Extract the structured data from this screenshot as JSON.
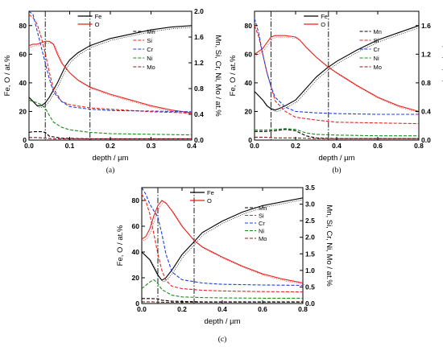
{
  "chart_data": [
    {
      "type": "line",
      "panel_label": "(a)",
      "xlabel": "depth / µm",
      "ylabel_left": "Fe, O / at.%",
      "ylabel_right": "Mn, Si, Cr, Ni, Mo / at.%",
      "xlim": [
        0,
        0.4
      ],
      "ylim_left": [
        0,
        90
      ],
      "ylim_right": [
        0,
        2.0
      ],
      "xticks": [
        "0.0",
        "0.1",
        "0.2",
        "0.3",
        "0.4"
      ],
      "xtick_values": [
        0,
        0.1,
        0.2,
        0.3,
        0.4
      ],
      "yticks_left": [
        "0",
        "20",
        "40",
        "60",
        "80"
      ],
      "ytick_values_left": [
        0,
        20,
        40,
        60,
        80
      ],
      "yticks_right": [
        "0.0",
        "0.4",
        "0.8",
        "1.2",
        "1.6",
        "2.0"
      ],
      "ytick_values_right": [
        0,
        0.4,
        0.8,
        1.2,
        1.6,
        2.0
      ],
      "vlines": [
        0.04,
        0.15
      ],
      "legend_left": [
        "Fe",
        "O"
      ],
      "legend_right": [
        "Mn",
        "Si",
        "Cr",
        "Ni",
        "Mo"
      ],
      "series": [
        {
          "name": "Fe",
          "axis": "left",
          "style": "solid",
          "color": "#000000",
          "x": [
            0,
            0.01,
            0.02,
            0.03,
            0.04,
            0.05,
            0.06,
            0.07,
            0.08,
            0.09,
            0.1,
            0.12,
            0.15,
            0.2,
            0.25,
            0.3,
            0.35,
            0.4
          ],
          "y": [
            30,
            27,
            24,
            24,
            26,
            30,
            35,
            40,
            46,
            52,
            56,
            61,
            66,
            71,
            74,
            77,
            79,
            80
          ]
        },
        {
          "name": "O",
          "axis": "left",
          "style": "solid",
          "color": "#e8231f",
          "x": [
            0,
            0.01,
            0.02,
            0.03,
            0.04,
            0.05,
            0.06,
            0.07,
            0.08,
            0.1,
            0.12,
            0.15,
            0.2,
            0.25,
            0.3,
            0.35,
            0.4
          ],
          "y": [
            66,
            67,
            67,
            68,
            69,
            69,
            67,
            60,
            54,
            47,
            42,
            37,
            32,
            28,
            24,
            21,
            19
          ]
        },
        {
          "name": "Mn",
          "axis": "right",
          "style": "dash",
          "color": "#000000",
          "x": [
            0,
            0.01,
            0.02,
            0.03,
            0.04,
            0.05,
            0.08,
            0.15,
            0.25,
            0.4
          ],
          "y": [
            0.12,
            0.13,
            0.13,
            0.13,
            0.12,
            0.06,
            0.03,
            0.02,
            0.02,
            0.02
          ]
        },
        {
          "name": "Si",
          "axis": "right",
          "style": "dash",
          "color": "#e8231f",
          "x": [
            0,
            0.01,
            0.02,
            0.03,
            0.04,
            0.05,
            0.06,
            0.08,
            0.1,
            0.15,
            0.2,
            0.3,
            0.4
          ],
          "y": [
            1.95,
            1.9,
            1.8,
            1.6,
            1.35,
            1.05,
            0.8,
            0.6,
            0.55,
            0.5,
            0.48,
            0.44,
            0.42
          ]
        },
        {
          "name": "Cr",
          "axis": "right",
          "style": "dash",
          "color": "#1f3fd8",
          "x": [
            0,
            0.01,
            0.02,
            0.03,
            0.04,
            0.05,
            0.06,
            0.08,
            0.1,
            0.15,
            0.2,
            0.3,
            0.4
          ],
          "y": [
            2.1,
            1.95,
            1.7,
            1.45,
            1.2,
            0.95,
            0.75,
            0.6,
            0.52,
            0.48,
            0.46,
            0.45,
            0.44
          ]
        },
        {
          "name": "Ni",
          "axis": "right",
          "style": "dash",
          "color": "#1a8a1a",
          "x": [
            0,
            0.01,
            0.02,
            0.03,
            0.04,
            0.05,
            0.06,
            0.08,
            0.1,
            0.15,
            0.2,
            0.3,
            0.4
          ],
          "y": [
            0.62,
            0.6,
            0.58,
            0.55,
            0.5,
            0.38,
            0.28,
            0.2,
            0.16,
            0.12,
            0.1,
            0.09,
            0.08
          ]
        },
        {
          "name": "Mo",
          "axis": "right",
          "style": "dash",
          "color": "#8b1a1a",
          "x": [
            0,
            0.02,
            0.04,
            0.06,
            0.1,
            0.2,
            0.4
          ],
          "y": [
            0.04,
            0.04,
            0.03,
            0.02,
            0.02,
            0.02,
            0.02
          ]
        }
      ]
    },
    {
      "type": "line",
      "panel_label": "(b)",
      "xlabel": "depth / µm",
      "ylabel_left": "Fe, O / at.%",
      "ylabel_right": "Mn, Si, Cr, Ni, Mo / at.%",
      "xlim": [
        0,
        0.8
      ],
      "ylim_left": [
        0,
        90
      ],
      "ylim_right": [
        0,
        1.8
      ],
      "xticks": [
        "0.0",
        "0.2",
        "0.4",
        "0.6",
        "0.8"
      ],
      "xtick_values": [
        0,
        0.2,
        0.4,
        0.6,
        0.8
      ],
      "yticks_left": [
        "0",
        "20",
        "40",
        "60",
        "80"
      ],
      "ytick_values_left": [
        0,
        20,
        40,
        60,
        80
      ],
      "yticks_right": [
        "0.0",
        "0.4",
        "0.8",
        "1.2",
        "1.6"
      ],
      "ytick_values_right": [
        0,
        0.4,
        0.8,
        1.2,
        1.6
      ],
      "vlines": [
        0.08,
        0.36
      ],
      "legend_left": [
        "Fe",
        "O"
      ],
      "legend_right": [
        "Mn",
        "Si",
        "Cr",
        "Ni",
        "Mo"
      ],
      "series": [
        {
          "name": "Fe",
          "axis": "left",
          "style": "solid",
          "color": "#000000",
          "x": [
            0,
            0.02,
            0.04,
            0.06,
            0.08,
            0.1,
            0.12,
            0.15,
            0.2,
            0.25,
            0.3,
            0.35,
            0.4,
            0.5,
            0.6,
            0.7,
            0.8
          ],
          "y": [
            34,
            31,
            28,
            24,
            22,
            21,
            22,
            24,
            28,
            36,
            44,
            50,
            55,
            63,
            70,
            75,
            80
          ]
        },
        {
          "name": "O",
          "axis": "left",
          "style": "solid",
          "color": "#e8231f",
          "x": [
            0,
            0.02,
            0.04,
            0.06,
            0.08,
            0.1,
            0.15,
            0.2,
            0.22,
            0.25,
            0.3,
            0.35,
            0.4,
            0.5,
            0.6,
            0.7,
            0.8
          ],
          "y": [
            60,
            62,
            64,
            68,
            72,
            73,
            73,
            72,
            70,
            65,
            58,
            52,
            47,
            38,
            30,
            24,
            20
          ]
        },
        {
          "name": "Mn",
          "axis": "right",
          "style": "dash",
          "color": "#000000",
          "x": [
            0,
            0.05,
            0.1,
            0.15,
            0.2,
            0.25,
            0.3,
            0.4,
            0.8
          ],
          "y": [
            0.12,
            0.12,
            0.13,
            0.15,
            0.13,
            0.06,
            0.03,
            0.02,
            0.02
          ]
        },
        {
          "name": "Si",
          "axis": "right",
          "style": "dash",
          "color": "#e8231f",
          "x": [
            0,
            0.02,
            0.04,
            0.06,
            0.08,
            0.1,
            0.15,
            0.2,
            0.3,
            0.4,
            0.6,
            0.8
          ],
          "y": [
            1.6,
            1.45,
            1.2,
            0.95,
            0.75,
            0.55,
            0.4,
            0.32,
            0.28,
            0.25,
            0.24,
            0.23
          ]
        },
        {
          "name": "Cr",
          "axis": "right",
          "style": "dash",
          "color": "#1f3fd8",
          "x": [
            0,
            0.02,
            0.04,
            0.06,
            0.08,
            0.1,
            0.15,
            0.2,
            0.3,
            0.4,
            0.6,
            0.8
          ],
          "y": [
            1.7,
            1.5,
            1.2,
            0.95,
            0.75,
            0.6,
            0.46,
            0.4,
            0.38,
            0.37,
            0.36,
            0.36
          ]
        },
        {
          "name": "Ni",
          "axis": "right",
          "style": "dash",
          "color": "#1a8a1a",
          "x": [
            0,
            0.05,
            0.1,
            0.15,
            0.2,
            0.25,
            0.3,
            0.4,
            0.6,
            0.8
          ],
          "y": [
            0.14,
            0.14,
            0.15,
            0.16,
            0.15,
            0.1,
            0.08,
            0.07,
            0.06,
            0.06
          ]
        },
        {
          "name": "Mo",
          "axis": "right",
          "style": "dash",
          "color": "#8b1a1a",
          "x": [
            0,
            0.05,
            0.1,
            0.2,
            0.3,
            0.4,
            0.8
          ],
          "y": [
            0.04,
            0.04,
            0.03,
            0.03,
            0.02,
            0.02,
            0.02
          ]
        }
      ]
    },
    {
      "type": "line",
      "panel_label": "(c)",
      "xlabel": "depth / µm",
      "ylabel_left": "Fe, O / at.%",
      "ylabel_right": "Mn, Si, Cr, Ni, Mo / at.%",
      "xlim": [
        0,
        0.8
      ],
      "ylim_left": [
        0,
        90
      ],
      "ylim_right": [
        0,
        3.5
      ],
      "xticks": [
        "0.0",
        "0.2",
        "0.4",
        "0.6",
        "0.8"
      ],
      "xtick_values": [
        0,
        0.2,
        0.4,
        0.6,
        0.8
      ],
      "yticks_left": [
        "0",
        "20",
        "40",
        "60",
        "80"
      ],
      "ytick_values_left": [
        0,
        20,
        40,
        60,
        80
      ],
      "yticks_right": [
        "0.0",
        "0.5",
        "1.0",
        "1.5",
        "2.0",
        "2.5",
        "3.0",
        "3.5"
      ],
      "ytick_values_right": [
        0,
        0.5,
        1.0,
        1.5,
        2.0,
        2.5,
        3.0,
        3.5
      ],
      "vlines": [
        0.08,
        0.26
      ],
      "legend_left": [
        "Fe",
        "O"
      ],
      "legend_right": [
        "Mn",
        "Si",
        "Cr",
        "Ni",
        "Mo"
      ],
      "series": [
        {
          "name": "Fe",
          "axis": "left",
          "style": "solid",
          "color": "#000000",
          "x": [
            0,
            0.02,
            0.04,
            0.06,
            0.08,
            0.1,
            0.12,
            0.15,
            0.2,
            0.26,
            0.3,
            0.4,
            0.5,
            0.6,
            0.7,
            0.8
          ],
          "y": [
            40,
            37,
            34,
            28,
            22,
            18,
            20,
            26,
            38,
            48,
            55,
            64,
            71,
            76,
            79,
            82
          ]
        },
        {
          "name": "O",
          "axis": "left",
          "style": "solid",
          "color": "#e8231f",
          "x": [
            0,
            0.02,
            0.04,
            0.06,
            0.08,
            0.1,
            0.12,
            0.15,
            0.2,
            0.26,
            0.3,
            0.4,
            0.5,
            0.6,
            0.7,
            0.8
          ],
          "y": [
            50,
            52,
            58,
            68,
            76,
            80,
            78,
            72,
            60,
            49,
            44,
            36,
            29,
            23,
            19,
            16
          ]
        },
        {
          "name": "Mn",
          "axis": "right",
          "style": "dash",
          "color": "#000000",
          "x": [
            0,
            0.04,
            0.08,
            0.1,
            0.15,
            0.3,
            0.8
          ],
          "y": [
            0.15,
            0.15,
            0.14,
            0.1,
            0.07,
            0.05,
            0.05
          ]
        },
        {
          "name": "Si",
          "axis": "right",
          "style": "dash",
          "color": "#e8231f",
          "x": [
            0,
            0.02,
            0.04,
            0.06,
            0.08,
            0.1,
            0.12,
            0.15,
            0.2,
            0.3,
            0.4,
            0.6,
            0.8
          ],
          "y": [
            3.3,
            3.1,
            2.7,
            2.1,
            1.5,
            1.0,
            0.7,
            0.52,
            0.45,
            0.4,
            0.38,
            0.36,
            0.35
          ]
        },
        {
          "name": "Cr",
          "axis": "right",
          "style": "dash",
          "color": "#1f3fd8",
          "x": [
            0,
            0.02,
            0.04,
            0.06,
            0.08,
            0.1,
            0.12,
            0.15,
            0.2,
            0.3,
            0.4,
            0.6,
            0.8
          ],
          "y": [
            3.5,
            3.3,
            3.0,
            2.8,
            2.6,
            2.1,
            1.5,
            0.95,
            0.72,
            0.62,
            0.58,
            0.56,
            0.55
          ]
        },
        {
          "name": "Ni",
          "axis": "right",
          "style": "dash",
          "color": "#1a8a1a",
          "x": [
            0,
            0.02,
            0.04,
            0.06,
            0.08,
            0.1,
            0.15,
            0.2,
            0.3,
            0.4,
            0.6,
            0.8
          ],
          "y": [
            0.45,
            0.55,
            0.65,
            0.72,
            0.6,
            0.42,
            0.25,
            0.2,
            0.18,
            0.17,
            0.16,
            0.16
          ]
        },
        {
          "name": "Mo",
          "axis": "right",
          "style": "dash",
          "color": "#8b1a1a",
          "x": [
            0,
            0.05,
            0.1,
            0.2,
            0.4,
            0.8
          ],
          "y": [
            0.05,
            0.05,
            0.04,
            0.04,
            0.04,
            0.04
          ]
        }
      ]
    }
  ]
}
